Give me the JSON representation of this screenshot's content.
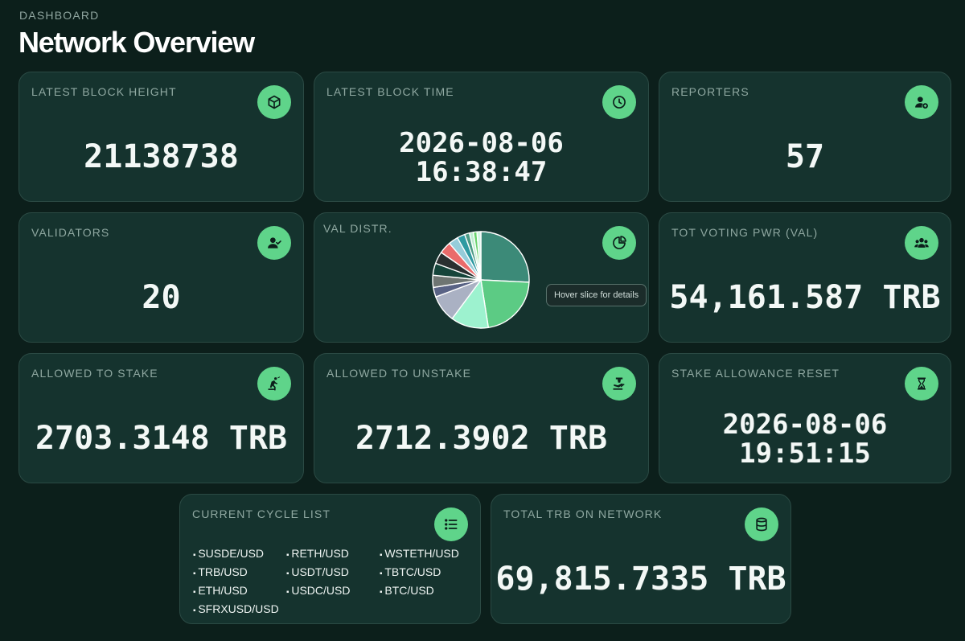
{
  "header": {
    "eyebrow": "DASHBOARD",
    "title": "Network Overview"
  },
  "cards": {
    "block_height": {
      "label": "LATEST BLOCK HEIGHT",
      "value": "21138738",
      "icon": "cube-icon"
    },
    "block_time": {
      "label": "LATEST BLOCK TIME",
      "date": "2026-08-06",
      "time": "16:38:47",
      "icon": "clock-icon"
    },
    "reporters": {
      "label": "REPORTERS",
      "value": "57",
      "icon": "user-plus-icon"
    },
    "validators": {
      "label": "VALIDATORS",
      "value": "20",
      "icon": "user-check-icon"
    },
    "val_distr": {
      "label": "VAL DISTR.",
      "tooltip": "Hover slice for details",
      "icon": "pie-chart-icon"
    },
    "voting_power": {
      "label": "TOT VOTING PWR (VAL)",
      "value": "54,161.587 TRB",
      "icon": "users-icon"
    },
    "allowed_stake": {
      "label": "ALLOWED TO STAKE",
      "value": "2703.3148 TRB",
      "icon": "stake-icon"
    },
    "allowed_unstake": {
      "label": "ALLOWED TO UNSTAKE",
      "value": "2712.3902 TRB",
      "icon": "unstake-icon"
    },
    "allowance_reset": {
      "label": "STAKE ALLOWANCE RESET",
      "date": "2026-08-06",
      "time": "19:51:15",
      "icon": "hourglass-icon"
    },
    "cycle_list": {
      "label": "CURRENT CYCLE LIST",
      "icon": "list-icon",
      "items": [
        "SUSDE/USD",
        "RETH/USD",
        "WSTETH/USD",
        "TRB/USD",
        "USDT/USD",
        "TBTC/USD",
        "ETH/USD",
        "USDC/USD",
        "BTC/USD",
        "SFRXUSD/USD"
      ]
    },
    "total_trb": {
      "label": "TOTAL TRB ON NETWORK",
      "value": "69,815.7335 TRB",
      "icon": "database-icon"
    }
  },
  "colors": {
    "accent": "#5fd48a",
    "card_bg": "#15332e",
    "page_bg": "#0c1f1b"
  },
  "chart_data": {
    "type": "pie",
    "values": [
      25.5,
      21.5,
      12.5,
      9,
      3.2,
      4,
      4,
      4,
      4,
      3.2,
      2.6,
      1.6,
      1.3,
      1.2,
      1.3
    ],
    "colors": [
      "#3c8a78",
      "#5ccb84",
      "#9df2cf",
      "#aab1c3",
      "#596385",
      "#6e7572",
      "#15443a",
      "#2a2f30",
      "#ea6b6b",
      "#96ccd9",
      "#2f9aa2",
      "#4c9b86",
      "#bfeed1",
      "#6ad36e",
      "#d4f7e4"
    ],
    "start_angle_deg": 0
  }
}
